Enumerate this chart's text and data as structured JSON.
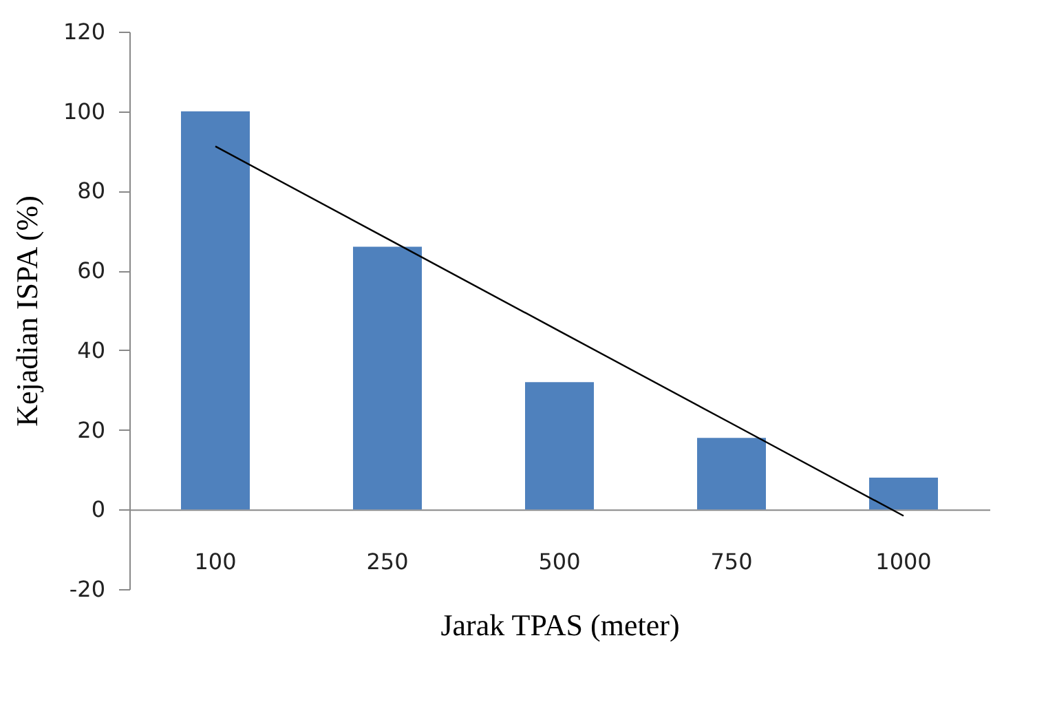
{
  "chart_data": {
    "type": "bar",
    "xlabel": "Jarak TPAS (meter)",
    "ylabel": "Kejadian ISPA (%)",
    "categories": [
      "100",
      "250",
      "500",
      "750",
      "1000"
    ],
    "series": [
      {
        "color": "#4f81bd",
        "values": [
          100,
          66,
          32,
          18,
          8
        ]
      },
      {
        "type": "line",
        "color": "#000000",
        "values": [
          91.2,
          68,
          44.8,
          21.6,
          -1.6
        ]
      }
    ],
    "ylim": [
      -20,
      120
    ],
    "yticks": [
      -20,
      0,
      20,
      40,
      60,
      80,
      100,
      120
    ]
  }
}
